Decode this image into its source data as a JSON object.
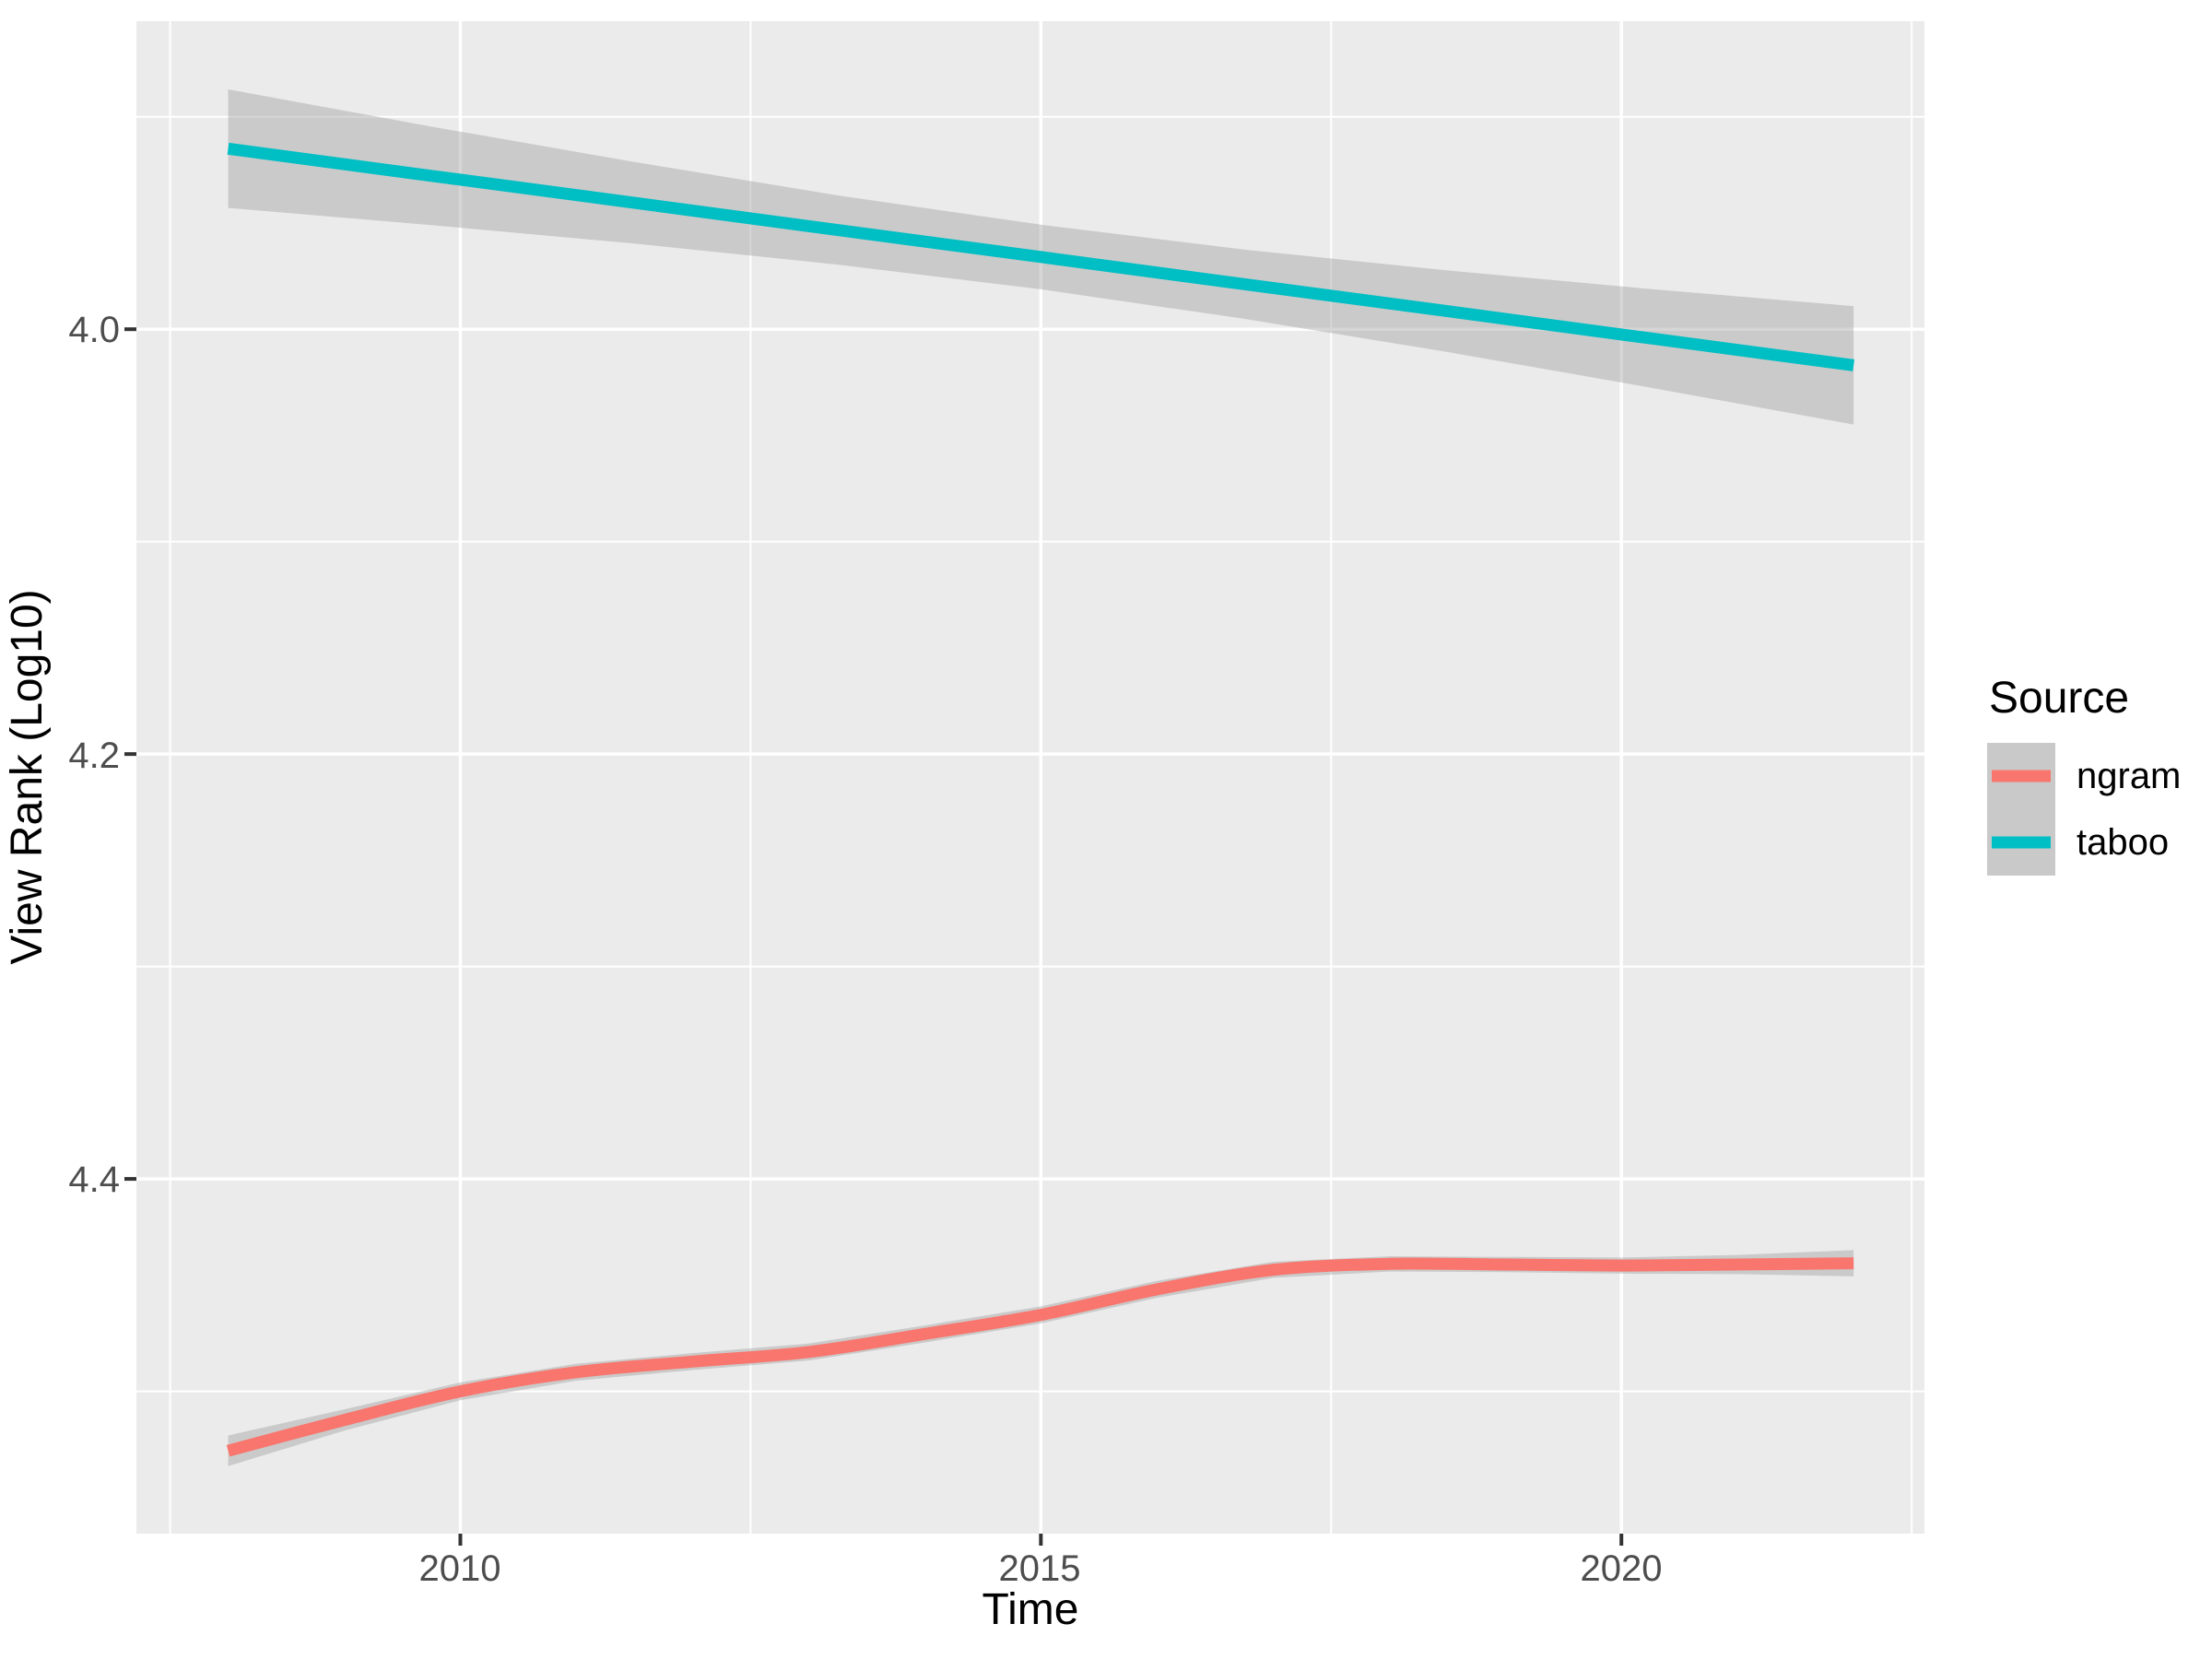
{
  "chart_data": {
    "type": "line",
    "title": "",
    "xlabel": "Time",
    "ylabel": "View Rank (Log10)",
    "x_axis": {
      "domain": [
        2007.21,
        2022.61
      ],
      "ticks": [
        {
          "value": 2010,
          "label": "2010"
        },
        {
          "value": 2015,
          "label": "2015"
        },
        {
          "value": 2020,
          "label": "2020"
        }
      ],
      "minor": [
        2007.5,
        2012.5,
        2017.5,
        2022.5
      ]
    },
    "y_axis": {
      "domain": [
        3.855,
        4.567
      ],
      "reversed_direction": "values increase downward",
      "ticks": [
        {
          "value": 4.0,
          "label": "4.0"
        },
        {
          "value": 4.2,
          "label": "4.2"
        },
        {
          "value": 4.4,
          "label": "4.4"
        }
      ],
      "minor": [
        3.9,
        4.1,
        4.3,
        4.5
      ]
    },
    "legend": {
      "title": "Source",
      "position": "right",
      "entries": [
        {
          "label": "ngram",
          "color": "#F8766D"
        },
        {
          "label": "taboo",
          "color": "#00BFC4"
        }
      ]
    },
    "series": [
      {
        "name": "ngram",
        "color": "#F8766D",
        "smooth": true,
        "x": [
          2008,
          2009,
          2010,
          2011,
          2012,
          2013,
          2014,
          2015,
          2016,
          2017,
          2018,
          2019,
          2020,
          2021,
          2022
        ],
        "y": [
          4.528,
          4.5135,
          4.5,
          4.491,
          4.486,
          4.4815,
          4.473,
          4.464,
          4.452,
          4.4428,
          4.44,
          4.4403,
          4.4408,
          4.4403,
          4.4397
        ],
        "ci_upper": [
          4.5208,
          4.5085,
          4.4958,
          4.487,
          4.482,
          4.4775,
          4.469,
          4.46,
          4.448,
          4.439,
          4.4364,
          4.4367,
          4.437,
          4.4358,
          4.4335
        ],
        "ci_lower": [
          4.5352,
          4.5185,
          4.5042,
          4.495,
          4.49,
          4.4855,
          4.477,
          4.468,
          4.456,
          4.4466,
          4.4436,
          4.4439,
          4.4446,
          4.4448,
          4.4459
        ]
      },
      {
        "name": "taboo",
        "color": "#00BFC4",
        "smooth": false,
        "x": [
          2008,
          2009.75,
          2011.5,
          2013.25,
          2015,
          2016.75,
          2018.5,
          2020.25,
          2022
        ],
        "y": [
          3.915,
          3.9278,
          3.9405,
          3.9533,
          3.966,
          3.9788,
          3.9915,
          4.0043,
          4.017
        ],
        "ci_upper": [
          3.8871,
          3.9046,
          3.9213,
          3.937,
          3.9508,
          3.9625,
          3.9723,
          3.9811,
          3.9891
        ],
        "ci_lower": [
          3.9429,
          3.951,
          3.9597,
          3.9696,
          3.9812,
          3.9951,
          4.0107,
          4.0275,
          4.0449
        ]
      }
    ],
    "styles": {
      "panel_bg": "#EBEBEB",
      "grid_color": "#FFFFFF",
      "ci_fill": "rgba(153,153,153,0.4)",
      "tick_mark_color": "#333333",
      "tick_label_color": "#4D4D4D",
      "axis_title_color": "#000000",
      "legend_key_bg": "#C9C9C9"
    }
  }
}
